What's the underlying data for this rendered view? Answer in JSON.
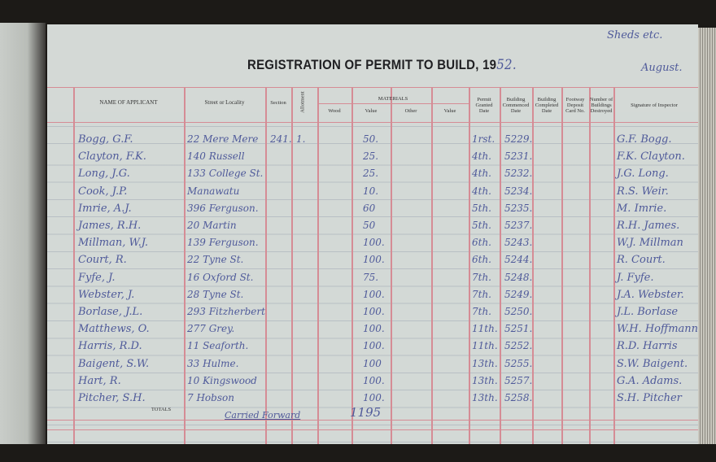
{
  "header": {
    "title": "REGISTRATION OF PERMIT TO BUILD, 19",
    "year_suffix": "52.",
    "corner_note": "Sheds etc.",
    "month": "August."
  },
  "columns": {
    "name": "NAME OF APPLICANT",
    "street": "Street or Locality",
    "section": "Section",
    "allotment": "Allotment",
    "materials": "MATERIALS",
    "wood": "Wood",
    "value1": "Value",
    "other": "Other",
    "value2": "Value",
    "permit": "Permit Granted Date",
    "commenced": "Building Commenced Date",
    "completed": "Building Completed Date",
    "footway": "Footway Deposit Card No.",
    "destroyed": "Number of Buildings Destroyed",
    "signature": "Signature of Inspector"
  },
  "rows": [
    {
      "name": "Bogg, G.F.",
      "street": "22 Mere Mere",
      "section": "241.",
      "allotment": "1.",
      "value": "50.",
      "permit": "1rst.",
      "commenced": "5229.",
      "signature": "G.F. Bogg."
    },
    {
      "name": "Clayton, F.K.",
      "street": "140 Russell",
      "section": "",
      "allotment": "",
      "value": "25.",
      "permit": "4th.",
      "commenced": "5231.",
      "signature": "F.K. Clayton."
    },
    {
      "name": "Long, J.G.",
      "street": "133 College St.",
      "section": "",
      "allotment": "",
      "value": "25.",
      "permit": "4th.",
      "commenced": "5232.",
      "signature": "J.G. Long."
    },
    {
      "name": "Cook, J.P.",
      "street": "Manawatu",
      "section": "",
      "allotment": "",
      "value": "10.",
      "permit": "4th.",
      "commenced": "5234.",
      "signature": "R.S. Weir."
    },
    {
      "name": "Imrie, A.J.",
      "street": "396 Ferguson.",
      "section": "",
      "allotment": "",
      "value": "60",
      "permit": "5th.",
      "commenced": "5235.",
      "signature": "M. Imrie."
    },
    {
      "name": "James, R.H.",
      "street": "20 Martin",
      "section": "",
      "allotment": "",
      "value": "50",
      "permit": "5th.",
      "commenced": "5237.",
      "signature": "R.H. James."
    },
    {
      "name": "Millman, W.J.",
      "street": "139 Ferguson.",
      "section": "",
      "allotment": "",
      "value": "100.",
      "permit": "6th.",
      "commenced": "5243.",
      "signature": "W.J. Millman"
    },
    {
      "name": "Court, R.",
      "street": "22 Tyne St.",
      "section": "",
      "allotment": "",
      "value": "100.",
      "permit": "6th.",
      "commenced": "5244.",
      "signature": "R. Court."
    },
    {
      "name": "Fyfe, J.",
      "street": "16 Oxford St.",
      "section": "",
      "allotment": "",
      "value": "75.",
      "permit": "7th.",
      "commenced": "5248.",
      "signature": "J. Fyfe."
    },
    {
      "name": "Webster, J.",
      "street": "28 Tyne St.",
      "section": "",
      "allotment": "",
      "value": "100.",
      "permit": "7th.",
      "commenced": "5249.",
      "signature": "J.A. Webster."
    },
    {
      "name": "Borlase, J.L.",
      "street": "293 Fitzherbert",
      "section": "",
      "allotment": "",
      "value": "100.",
      "permit": "7th.",
      "commenced": "5250.",
      "signature": "J.L. Borlase"
    },
    {
      "name": "Matthews, O.",
      "street": "277 Grey.",
      "section": "",
      "allotment": "",
      "value": "100.",
      "permit": "11th.",
      "commenced": "5251.",
      "signature": "W.H. Hoffmann"
    },
    {
      "name": "Harris, R.D.",
      "street": "11 Seaforth.",
      "section": "",
      "allotment": "",
      "value": "100.",
      "permit": "11th.",
      "commenced": "5252.",
      "signature": "R.D. Harris"
    },
    {
      "name": "Baigent, S.W.",
      "street": "33 Hulme.",
      "section": "",
      "allotment": "",
      "value": "100",
      "permit": "13th.",
      "commenced": "5255.",
      "signature": "S.W. Baigent."
    },
    {
      "name": "Hart, R.",
      "street": "10 Kingswood",
      "section": "",
      "allotment": "",
      "value": "100.",
      "permit": "13th.",
      "commenced": "5257.",
      "signature": "G.A. Adams."
    },
    {
      "name": "Pitcher, S.H.",
      "street": "7 Hobson",
      "section": "",
      "allotment": "",
      "value": "100.",
      "permit": "13th.",
      "commenced": "5258.",
      "signature": "S.H. Pitcher"
    }
  ],
  "totals": {
    "label": "TOTALS",
    "note": "Carried Forward",
    "value": "1195"
  },
  "colors": {
    "ink": "#4f5a9a",
    "rule": "#d58c95",
    "paper": "#d3d9d6"
  }
}
